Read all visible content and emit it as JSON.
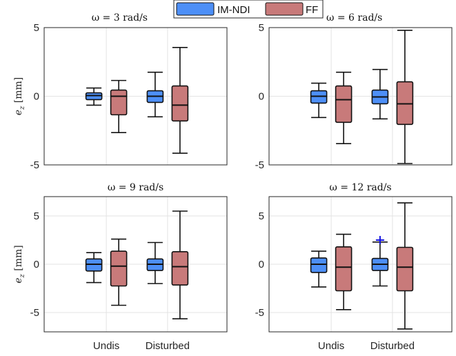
{
  "legend": {
    "entries": [
      {
        "name": "IM-NDI",
        "color": "#4d8ff7"
      },
      {
        "name": "FF",
        "color": "#c87a7a"
      }
    ]
  },
  "chart_data": [
    {
      "type": "box",
      "title": "ω = 3 rad/s",
      "ylabel": "e_z [mm]",
      "ylim": [
        -5,
        5
      ],
      "yticks": [
        -5,
        0,
        5
      ],
      "categories": [
        "Undis",
        "Disturbed"
      ],
      "show_xtick_labels": false,
      "show_ytick_labels": true,
      "grid": true,
      "series": [
        {
          "name": "IM-NDI",
          "color": "#4d8ff7",
          "boxes": [
            {
              "min": -0.65,
              "q1": -0.25,
              "median": 0.05,
              "q3": 0.25,
              "max": 0.6,
              "outliers": []
            },
            {
              "min": -1.5,
              "q1": -0.45,
              "median": 0.0,
              "q3": 0.4,
              "max": 1.75,
              "outliers": []
            }
          ]
        },
        {
          "name": "FF",
          "color": "#c87a7a",
          "boxes": [
            {
              "min": -2.65,
              "q1": -1.35,
              "median": 0.0,
              "q3": 0.45,
              "max": 1.15,
              "outliers": []
            },
            {
              "min": -4.15,
              "q1": -1.8,
              "median": -0.65,
              "q3": 0.75,
              "max": 3.55,
              "outliers": []
            }
          ]
        }
      ]
    },
    {
      "type": "box",
      "title": "ω = 6 rad/s",
      "ylabel": "",
      "ylim": [
        -5,
        5
      ],
      "yticks": [
        -5,
        0,
        5
      ],
      "categories": [
        "Undis",
        "Disturbed"
      ],
      "show_xtick_labels": false,
      "show_ytick_labels": true,
      "grid": true,
      "series": [
        {
          "name": "IM-NDI",
          "color": "#4d8ff7",
          "boxes": [
            {
              "min": -1.55,
              "q1": -0.5,
              "median": 0.0,
              "q3": 0.4,
              "max": 0.95,
              "outliers": []
            },
            {
              "min": -1.65,
              "q1": -0.55,
              "median": -0.05,
              "q3": 0.45,
              "max": 1.95,
              "outliers": []
            }
          ]
        },
        {
          "name": "FF",
          "color": "#c87a7a",
          "boxes": [
            {
              "min": -3.45,
              "q1": -1.9,
              "median": -0.25,
              "q3": 0.75,
              "max": 1.75,
              "outliers": []
            },
            {
              "min": -4.9,
              "q1": -2.05,
              "median": -0.55,
              "q3": 1.05,
              "max": 4.8,
              "outliers": []
            }
          ]
        }
      ]
    },
    {
      "type": "box",
      "title": "ω = 9 rad/s",
      "ylabel": "e_z [mm]",
      "ylim": [
        -7,
        7
      ],
      "yticks": [
        -5,
        0,
        5
      ],
      "categories": [
        "Undis",
        "Disturbed"
      ],
      "show_xtick_labels": true,
      "show_ytick_labels": true,
      "grid": true,
      "series": [
        {
          "name": "IM-NDI",
          "color": "#4d8ff7",
          "boxes": [
            {
              "min": -1.9,
              "q1": -0.7,
              "median": 0.0,
              "q3": 0.55,
              "max": 1.2,
              "outliers": []
            },
            {
              "min": -2.0,
              "q1": -0.65,
              "median": 0.0,
              "q3": 0.55,
              "max": 2.25,
              "outliers": []
            }
          ]
        },
        {
          "name": "FF",
          "color": "#c87a7a",
          "boxes": [
            {
              "min": -4.25,
              "q1": -2.25,
              "median": -0.2,
              "q3": 1.35,
              "max": 2.6,
              "outliers": []
            },
            {
              "min": -5.65,
              "q1": -2.15,
              "median": -0.25,
              "q3": 1.3,
              "max": 5.5,
              "outliers": []
            }
          ]
        }
      ]
    },
    {
      "type": "box",
      "title": "ω = 12 rad/s",
      "ylabel": "",
      "ylim": [
        -7,
        7
      ],
      "yticks": [
        -5,
        0,
        5
      ],
      "categories": [
        "Undis",
        "Disturbed"
      ],
      "show_xtick_labels": true,
      "show_ytick_labels": true,
      "grid": true,
      "series": [
        {
          "name": "IM-NDI",
          "color": "#4d8ff7",
          "boxes": [
            {
              "min": -2.35,
              "q1": -0.85,
              "median": 0.0,
              "q3": 0.65,
              "max": 1.35,
              "outliers": []
            },
            {
              "min": -2.25,
              "q1": -0.65,
              "median": 0.0,
              "q3": 0.6,
              "max": 2.3,
              "outliers": [
                2.5
              ]
            }
          ]
        },
        {
          "name": "FF",
          "color": "#c87a7a",
          "boxes": [
            {
              "min": -4.7,
              "q1": -2.75,
              "median": -0.3,
              "q3": 1.8,
              "max": 3.1,
              "outliers": []
            },
            {
              "min": -6.7,
              "q1": -2.75,
              "median": -0.3,
              "q3": 1.75,
              "max": 6.35,
              "outliers": []
            }
          ]
        }
      ]
    }
  ]
}
